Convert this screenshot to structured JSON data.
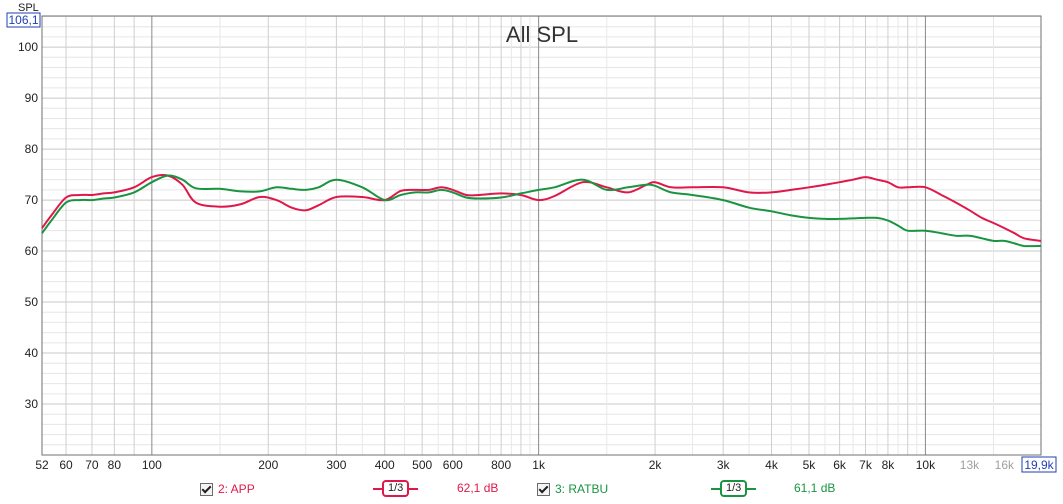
{
  "chart_data": {
    "type": "line",
    "title": "All SPL",
    "ylabel": "SPL",
    "ymax_label": "106,1",
    "xmax_label": "19,9k",
    "xscale": "log",
    "xlim": [
      52,
      19900
    ],
    "ylim": [
      20,
      106.1
    ],
    "yticks": [
      30,
      40,
      50,
      60,
      70,
      80,
      90,
      100
    ],
    "xticks": [
      {
        "v": 52,
        "label": "52",
        "bold": false
      },
      {
        "v": 60,
        "label": "60",
        "bold": false
      },
      {
        "v": 70,
        "label": "70",
        "bold": false
      },
      {
        "v": 80,
        "label": "80",
        "bold": false
      },
      {
        "v": 100,
        "label": "100",
        "bold": false
      },
      {
        "v": 200,
        "label": "200",
        "bold": false
      },
      {
        "v": 300,
        "label": "300",
        "bold": false
      },
      {
        "v": 400,
        "label": "400",
        "bold": false
      },
      {
        "v": 500,
        "label": "500",
        "bold": false
      },
      {
        "v": 600,
        "label": "600",
        "bold": false
      },
      {
        "v": 800,
        "label": "800",
        "bold": false
      },
      {
        "v": 1000,
        "label": "1k",
        "bold": false
      },
      {
        "v": 2000,
        "label": "2k",
        "bold": false
      },
      {
        "v": 3000,
        "label": "3k",
        "bold": false
      },
      {
        "v": 4000,
        "label": "4k",
        "bold": false
      },
      {
        "v": 5000,
        "label": "5k",
        "bold": false
      },
      {
        "v": 6000,
        "label": "6k",
        "bold": false
      },
      {
        "v": 7000,
        "label": "7k",
        "bold": false
      },
      {
        "v": 8000,
        "label": "8k",
        "bold": false
      },
      {
        "v": 10000,
        "label": "10k",
        "bold": false
      },
      {
        "v": 13000,
        "label": "13k",
        "bold": false,
        "faded": true
      },
      {
        "v": 16000,
        "label": "16k",
        "bold": false,
        "faded": true
      }
    ],
    "grid": true,
    "series": [
      {
        "name": "2: APP",
        "color": "#e0174a",
        "x": [
          52,
          55,
          60,
          65,
          70,
          75,
          80,
          90,
          100,
          110,
          120,
          130,
          150,
          170,
          190,
          210,
          230,
          250,
          270,
          300,
          350,
          400,
          440,
          480,
          520,
          560,
          600,
          650,
          700,
          800,
          900,
          1000,
          1100,
          1300,
          1500,
          1700,
          1900,
          2000,
          2200,
          2500,
          3000,
          3500,
          4000,
          4500,
          5000,
          5500,
          6000,
          6500,
          7000,
          7500,
          8000,
          8500,
          9000,
          10000,
          11000,
          12000,
          13000,
          14000,
          15000,
          16000,
          17000,
          18000,
          19900
        ],
        "y": [
          64.5,
          67,
          70.5,
          71,
          71,
          71.3,
          71.5,
          72.5,
          74.5,
          74.8,
          73,
          69.5,
          68.7,
          69.2,
          70.6,
          70,
          68.5,
          68,
          69,
          70.6,
          70.6,
          70,
          71.8,
          72,
          72,
          72.5,
          72,
          71,
          71,
          71.3,
          71,
          70,
          70.8,
          73.5,
          72.5,
          71.5,
          73,
          73.5,
          72.5,
          72.5,
          72.5,
          71.5,
          71.5,
          72,
          72.5,
          73,
          73.5,
          74,
          74.5,
          74,
          73.5,
          72.5,
          72.5,
          72.5,
          71,
          69.5,
          68,
          66.5,
          65.5,
          64.5,
          63.5,
          62.5,
          62
        ]
      },
      {
        "name": "3: RATBU",
        "color": "#1a9440",
        "x": [
          52,
          55,
          60,
          65,
          70,
          75,
          80,
          90,
          100,
          110,
          120,
          130,
          150,
          170,
          190,
          210,
          230,
          250,
          270,
          300,
          350,
          400,
          440,
          480,
          520,
          560,
          600,
          650,
          700,
          800,
          900,
          1000,
          1100,
          1300,
          1500,
          1700,
          1900,
          2000,
          2200,
          2500,
          3000,
          3500,
          4000,
          4500,
          5000,
          5500,
          6000,
          6500,
          7000,
          7500,
          8000,
          8500,
          9000,
          10000,
          11000,
          12000,
          13000,
          14000,
          15000,
          16000,
          17000,
          18000,
          19900
        ],
        "y": [
          63.5,
          66,
          69.5,
          70,
          70,
          70.3,
          70.5,
          71.5,
          73.5,
          74.8,
          74,
          72.3,
          72.2,
          71.7,
          71.7,
          72.5,
          72.2,
          72,
          72.5,
          74,
          72.5,
          70,
          71,
          71.5,
          71.5,
          72,
          71.5,
          70.5,
          70.3,
          70.5,
          71.3,
          72,
          72.5,
          74,
          72,
          72.5,
          73,
          72.8,
          71.5,
          71,
          70,
          68.5,
          67.8,
          67,
          66.5,
          66.3,
          66.3,
          66.4,
          66.5,
          66.5,
          66,
          65,
          64,
          64,
          63.5,
          63,
          63,
          62.5,
          62,
          62,
          61.5,
          61,
          61
        ]
      }
    ],
    "legend": [
      {
        "label": "2: APP",
        "checked": true,
        "smoothing": "1/3",
        "level": "62,1 dB",
        "color": "#e0174a"
      },
      {
        "label": "3: RATBU",
        "checked": true,
        "smoothing": "1/3",
        "level": "61,1 dB",
        "color": "#1a9440"
      }
    ]
  }
}
